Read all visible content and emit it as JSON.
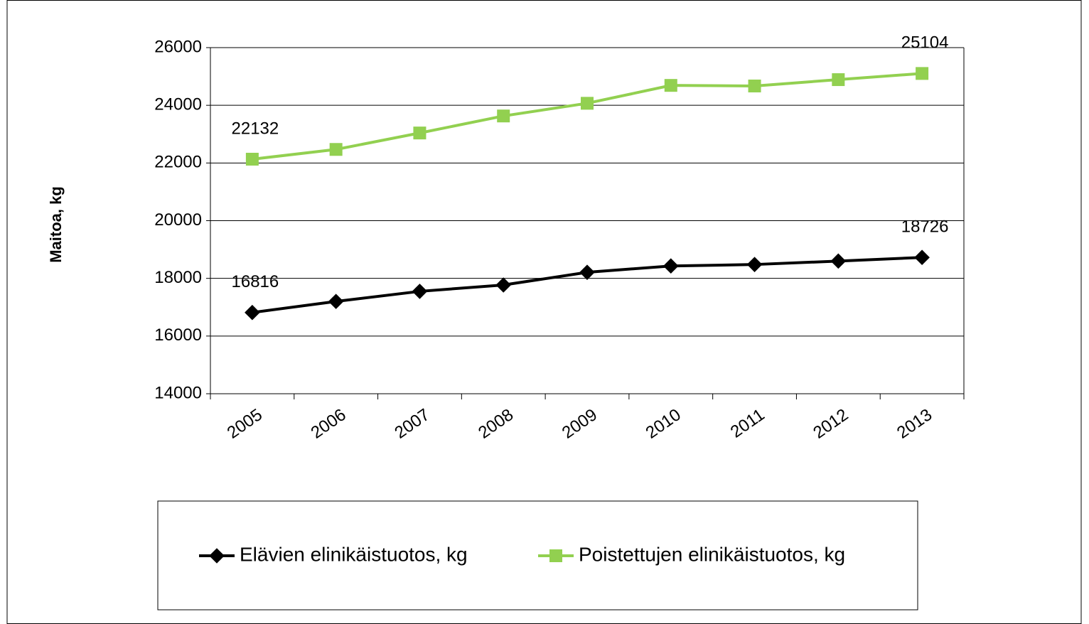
{
  "chart_data": {
    "type": "line",
    "y_label": "Maitoa, kg",
    "categories": [
      "2005",
      "2006",
      "2007",
      "2008",
      "2009",
      "2010",
      "2011",
      "2012",
      "2013"
    ],
    "series": [
      {
        "name": "Elävien elinikäistuotos, kg",
        "color": "#000000",
        "marker": "diamond",
        "values": [
          16816,
          17200,
          17550,
          17770,
          18210,
          18430,
          18480,
          18600,
          18726
        ]
      },
      {
        "name": "Poistettujen elinikäistuotos, kg",
        "color": "#92d050",
        "marker": "square",
        "values": [
          22132,
          22470,
          23040,
          23630,
          24070,
          24690,
          24670,
          24890,
          25104
        ]
      }
    ],
    "ylim": [
      14000,
      26000
    ],
    "yticks": [
      14000,
      16000,
      18000,
      20000,
      22000,
      24000,
      26000
    ],
    "grid": true,
    "legend": "bottom"
  }
}
